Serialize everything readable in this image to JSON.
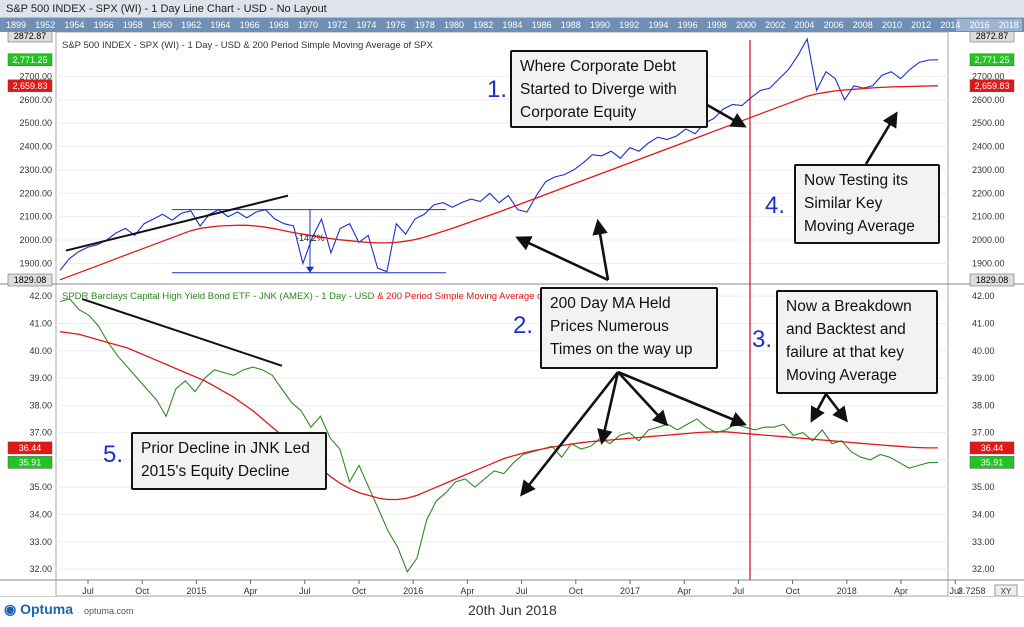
{
  "window": {
    "title": "S&P 500 INDEX - SPX (WI) - 1 Day Line Chart - USD - No Layout"
  },
  "year_strip": [
    "1899",
    "1952",
    "1954",
    "1956",
    "1958",
    "1960",
    "1962",
    "1964",
    "1966",
    "1968",
    "1970",
    "1972",
    "1974",
    "1976",
    "1978",
    "1980",
    "1982",
    "1984",
    "1986",
    "1988",
    "1990",
    "1992",
    "1994",
    "1996",
    "1998",
    "2000",
    "2002",
    "2004",
    "2006",
    "2008",
    "2010",
    "2012",
    "2014",
    "2016",
    "2018"
  ],
  "colors": {
    "spx": "#1b2fd0",
    "jnk": "#2e8b22",
    "ma": "#e01818",
    "annot": "#111111",
    "vline": "#c8102e"
  },
  "chart_data": [
    {
      "type": "line",
      "title": "S&P 500 INDEX - SPX (WI) - 1 Day - USD & 200 Period Simple Moving Average of SPX",
      "ylim": [
        1829.08,
        2872.87
      ],
      "yticks": [
        "1900.00",
        "2000.00",
        "2100.00",
        "2200.00",
        "2300.00",
        "2400.00",
        "2500.00",
        "2600.00",
        "2700.00"
      ],
      "price_labels": {
        "top": "2872.87",
        "last": "2,771.25",
        "ma": "2,659.83",
        "bottom": "1829.08"
      },
      "series": [
        {
          "kind": "price",
          "values": [
            1870,
            1920,
            1950,
            1970,
            1980,
            2000,
            2030,
            2050,
            2020,
            2070,
            2090,
            2110,
            2085,
            2115,
            2125,
            2060,
            2110,
            2130,
            2100,
            2120,
            2095,
            2120,
            2130,
            2090,
            2070,
            2060,
            1900,
            2010,
            2090,
            1945,
            2050,
            2070,
            1990,
            2020,
            1880,
            1865,
            2070,
            2025,
            2090,
            2110,
            2150,
            2160,
            2140,
            2160,
            2175,
            2165,
            2200,
            2160,
            2190,
            2130,
            2120,
            2190,
            2250,
            2270,
            2280,
            2300,
            2330,
            2365,
            2360,
            2380,
            2350,
            2395,
            2380,
            2415,
            2440,
            2430,
            2445,
            2475,
            2455,
            2500,
            2520,
            2560,
            2580,
            2575,
            2610,
            2640,
            2650,
            2690,
            2730,
            2790,
            2860,
            2640,
            2720,
            2690,
            2600,
            2660,
            2650,
            2660,
            2705,
            2720,
            2690,
            2730,
            2760,
            2770,
            2771
          ]
        },
        {
          "kind": "ma",
          "values": [
            1830,
            1845,
            1860,
            1875,
            1890,
            1905,
            1920,
            1935,
            1950,
            1965,
            1980,
            1995,
            2010,
            2025,
            2040,
            2050,
            2055,
            2060,
            2062,
            2063,
            2063,
            2060,
            2055,
            2048,
            2040,
            2032,
            2025,
            2018,
            2012,
            2006,
            2001,
            1997,
            1993,
            1990,
            1988,
            1988,
            1990,
            1995,
            2002,
            2012,
            2024,
            2037,
            2050,
            2064,
            2078,
            2092,
            2106,
            2120,
            2135,
            2150,
            2165,
            2180,
            2195,
            2210,
            2225,
            2240,
            2255,
            2270,
            2285,
            2300,
            2315,
            2330,
            2345,
            2360,
            2375,
            2390,
            2405,
            2420,
            2435,
            2450,
            2465,
            2480,
            2495,
            2510,
            2525,
            2540,
            2555,
            2570,
            2585,
            2600,
            2615,
            2625,
            2632,
            2638,
            2642,
            2645,
            2648,
            2651,
            2653,
            2655,
            2656,
            2657,
            2658,
            2659,
            2659.83
          ]
        }
      ],
      "annotation": "-14.2%"
    },
    {
      "type": "line",
      "title": "SPDR Barclays Capital High Yield Bond ETF - JNK (AMEX) - 1 Day - USD",
      "title_ma": "& 200 Period Simple Moving Average of JNK",
      "ylim": [
        31.6,
        42.3
      ],
      "yticks": [
        "32.00",
        "33.00",
        "34.00",
        "35.00",
        "36.00",
        "37.00",
        "38.00",
        "39.00",
        "40.00",
        "41.00",
        "42.00"
      ],
      "price_labels": {
        "ma": "36.44",
        "last": "35.91"
      },
      "series": [
        {
          "kind": "price",
          "values": [
            41.8,
            41.9,
            41.5,
            41.3,
            40.9,
            40.3,
            39.8,
            39.4,
            39.0,
            38.6,
            38.2,
            37.6,
            38.6,
            38.9,
            38.5,
            39.0,
            39.3,
            39.2,
            39.1,
            39.3,
            39.4,
            39.3,
            39.1,
            38.6,
            38.1,
            37.8,
            37.2,
            37.6,
            36.8,
            36.4,
            35.2,
            35.8,
            35.0,
            34.2,
            33.4,
            32.8,
            31.9,
            32.4,
            33.8,
            34.5,
            34.8,
            35.2,
            35.3,
            35.0,
            35.3,
            35.6,
            35.5,
            35.9,
            36.2,
            36.3,
            36.4,
            36.5,
            36.1,
            36.6,
            36.4,
            36.5,
            36.8,
            36.6,
            36.9,
            37.0,
            36.7,
            37.1,
            37.2,
            37.3,
            37.1,
            37.3,
            37.5,
            37.2,
            37.0,
            37.1,
            37.3,
            37.2,
            37.1,
            37.2,
            37.2,
            37.3,
            36.9,
            37.0,
            36.7,
            37.1,
            36.6,
            36.7,
            36.3,
            36.1,
            36.0,
            36.2,
            36.1,
            35.9,
            35.7,
            35.8,
            35.9,
            35.91
          ]
        },
        {
          "kind": "ma",
          "values": [
            40.7,
            40.65,
            40.6,
            40.5,
            40.4,
            40.3,
            40.2,
            40.1,
            39.95,
            39.8,
            39.65,
            39.5,
            39.35,
            39.2,
            39.05,
            38.9,
            38.7,
            38.5,
            38.3,
            38.05,
            37.8,
            37.5,
            37.2,
            36.9,
            36.6,
            36.3,
            36.0,
            35.7,
            35.4,
            35.15,
            34.95,
            34.8,
            34.7,
            34.6,
            34.55,
            34.55,
            34.6,
            34.7,
            34.85,
            35.0,
            35.15,
            35.3,
            35.45,
            35.6,
            35.75,
            35.9,
            36.05,
            36.15,
            36.25,
            36.33,
            36.4,
            36.47,
            36.53,
            36.58,
            36.63,
            36.67,
            36.7,
            36.73,
            36.76,
            36.79,
            36.82,
            36.85,
            36.88,
            36.91,
            36.94,
            36.97,
            37.0,
            37.02,
            37.03,
            37.03,
            37.0,
            36.97,
            36.94,
            36.91,
            36.88,
            36.85,
            36.82,
            36.79,
            36.76,
            36.73,
            36.7,
            36.67,
            36.64,
            36.61,
            36.58,
            36.55,
            36.52,
            36.5,
            36.47,
            36.45,
            36.44,
            36.44
          ]
        }
      ]
    }
  ],
  "x_ticks": [
    "Jul",
    "Oct",
    "2015",
    "Apr",
    "Jul",
    "Oct",
    "2016",
    "Apr",
    "Jul",
    "Oct",
    "2017",
    "Apr",
    "Jul",
    "Oct",
    "2018",
    "Apr",
    "Jul"
  ],
  "annotations": [
    {
      "num": "1.",
      "text": "Where Corporate Debt\nStarted to Diverge with\nCorporate Equity"
    },
    {
      "num": "2.",
      "text": "200 Day MA Held\nPrices Numerous\nTimes on the way up"
    },
    {
      "num": "3.",
      "text": "Now a Breakdown\nand Backtest and\nfailure at that key\nMoving Average"
    },
    {
      "num": "4.",
      "text": "Now Testing its\nSimilar Key\nMoving Average"
    },
    {
      "num": "5.",
      "text": "Prior Decline in JNK Led\n2015's Equity Decline"
    }
  ],
  "footer": {
    "logo": "Optuma",
    "logo_sub": "optuma.com",
    "date": "20th Jun 2018",
    "corner_value": "3.7258",
    "xy_button": "XY"
  }
}
